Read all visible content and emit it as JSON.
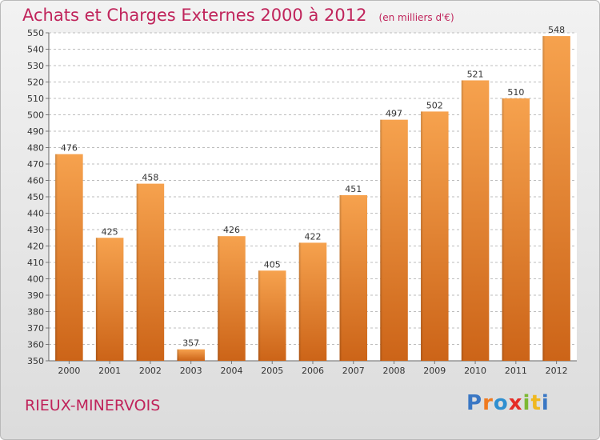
{
  "header": {
    "title": "Achats et Charges Externes 2000 à 2012",
    "subtitle": "(en milliers d'€)"
  },
  "footer": {
    "location": "RIEUX-MINERVOIS",
    "logo_text": "Proxiti"
  },
  "colors": {
    "accent": "#c0245b",
    "bar_top": "#f6a24e",
    "bar_bottom": "#cc6418",
    "logo_letters": [
      "#3a77c4",
      "#f07a1f",
      "#2f8fd0",
      "#e52d27",
      "#7cb832",
      "#f0b81f",
      "#3a77c4"
    ]
  },
  "chart_data": {
    "type": "bar",
    "title": "Achats et Charges Externes 2000 à 2012",
    "subtitle": "(en milliers d'€)",
    "categories": [
      "2000",
      "2001",
      "2002",
      "2003",
      "2004",
      "2005",
      "2006",
      "2007",
      "2008",
      "2009",
      "2010",
      "2011",
      "2012"
    ],
    "values": [
      476,
      425,
      458,
      357,
      426,
      405,
      422,
      451,
      497,
      502,
      521,
      510,
      548
    ],
    "ylim": [
      350,
      550
    ],
    "yticks": [
      350,
      360,
      370,
      380,
      390,
      400,
      410,
      420,
      430,
      440,
      450,
      460,
      470,
      480,
      490,
      500,
      510,
      520,
      530,
      540,
      550
    ],
    "grid": true,
    "xlabel": "",
    "ylabel": ""
  }
}
